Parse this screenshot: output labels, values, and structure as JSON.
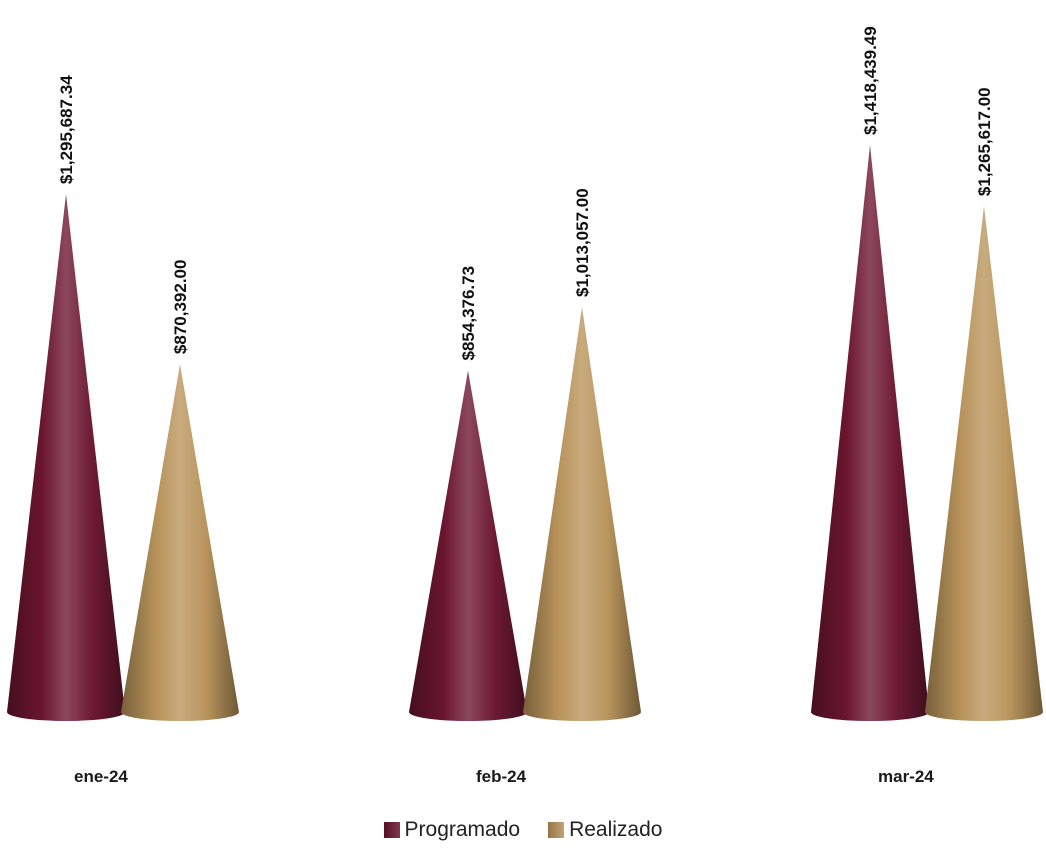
{
  "chart_data": {
    "type": "bar",
    "bar_shape": "cone",
    "categories": [
      "ene-24",
      "feb-24",
      "mar-24"
    ],
    "series": [
      {
        "name": "Programado",
        "color": "#6b1530",
        "values": [
          1295687.34,
          854376.73,
          1418439.49
        ],
        "labels": [
          "$1,295,687.34",
          "$854,376.73",
          "$1,418,439.49"
        ]
      },
      {
        "name": "Realizado",
        "color": "#b8935a",
        "values": [
          870392.0,
          1013057.0,
          1265617.0
        ],
        "labels": [
          "$870,392.00",
          "$1,013,057.00",
          "$1,265,617.00"
        ]
      }
    ],
    "legend_position": "bottom",
    "gridlines": false,
    "y_axis_visible": false,
    "ylim": [
      0,
      1418439.49
    ]
  }
}
